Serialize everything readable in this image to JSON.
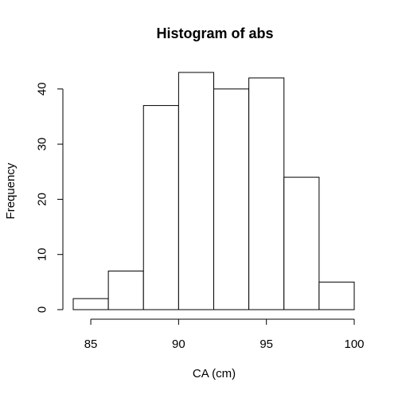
{
  "chart_data": {
    "type": "bar",
    "title": "Histogram of abs",
    "xlabel": "CA (cm)",
    "ylabel": "Frequency",
    "bins": [
      {
        "start": 84,
        "end": 86,
        "count": 2
      },
      {
        "start": 86,
        "end": 88,
        "count": 7
      },
      {
        "start": 88,
        "end": 90,
        "count": 37
      },
      {
        "start": 90,
        "end": 92,
        "count": 43
      },
      {
        "start": 92,
        "end": 94,
        "count": 40
      },
      {
        "start": 94,
        "end": 96,
        "count": 42
      },
      {
        "start": 96,
        "end": 98,
        "count": 24
      },
      {
        "start": 98,
        "end": 100,
        "count": 5
      }
    ],
    "xlim": [
      84,
      100
    ],
    "ylim": [
      0,
      43
    ],
    "x_ticks": [
      85,
      90,
      95,
      100
    ],
    "y_ticks": [
      0,
      10,
      20,
      30,
      40
    ],
    "bar_fill": "#ffffff",
    "bar_stroke": "#000000",
    "grid": false
  }
}
